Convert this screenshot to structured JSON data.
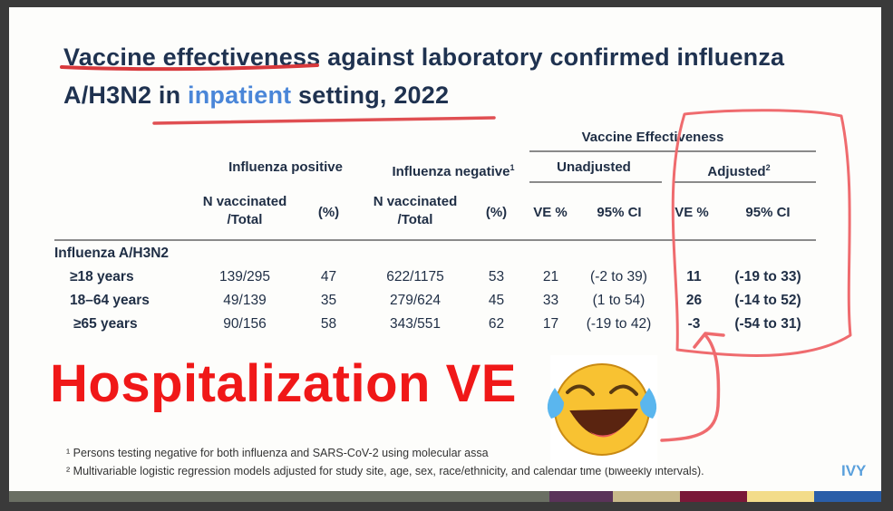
{
  "title": {
    "part1": "Vaccine effectiveness against laboratory confirmed influenza",
    "part2_prefix": "A/H3N2 in ",
    "part2_highlight": "inpatient",
    "part2_suffix": " setting,  2022"
  },
  "table": {
    "ve_group_header": "Vaccine Effectiveness",
    "flu_pos_header": "Influenza positive",
    "flu_neg_header": "Influenza negative",
    "flu_neg_sup": "1",
    "unadjusted_header": "Unadjusted",
    "adjusted_header": "Adjusted",
    "adjusted_sup": "2",
    "col_n_vacc_line1": "N vaccinated",
    "col_n_vacc_line2": "/Total",
    "col_pct": "(%)",
    "col_ve": "VE %",
    "col_ci": "95% CI",
    "section_label": "Influenza A/H3N2",
    "rows": [
      {
        "label": "≥18 years",
        "pos_n": "139/295",
        "pos_pct": "47",
        "neg_n": "622/1175",
        "neg_pct": "53",
        "ve_u": "21",
        "ci_u": "(-2 to 39)",
        "ve_a": "11",
        "ci_a": "(-19 to 33)"
      },
      {
        "label": "18–64 years",
        "pos_n": "49/139",
        "pos_pct": "35",
        "neg_n": "279/624",
        "neg_pct": "45",
        "ve_u": "33",
        "ci_u": "(1 to 54)",
        "ve_a": "26",
        "ci_a": "(-14 to 52)"
      },
      {
        "label": "≥65 years",
        "pos_n": "90/156",
        "pos_pct": "58",
        "neg_n": "343/551",
        "neg_pct": "62",
        "ve_u": "17",
        "ci_u": "(-19 to 42)",
        "ve_a": "-3",
        "ci_a": "(-54 to 31)"
      }
    ]
  },
  "annotation": {
    "big_text": "Hospitalization VE",
    "emoji": "😂"
  },
  "footnotes": {
    "fn1_mark": "¹",
    "fn1": "Persons testing negative for both influenza and SARS-CoV-2 using molecular assa",
    "fn2_mark": "²",
    "fn2": "Multivariable logistic regression models adjusted for study site, age, sex, race/ethnicity, and calendar time (biweekly intervals)."
  },
  "logo": "IVY",
  "colors": {
    "title": "#1f3250",
    "highlight": "#4a86d8",
    "annotation_red": "#f01818",
    "pen_red": "#e8565a"
  }
}
